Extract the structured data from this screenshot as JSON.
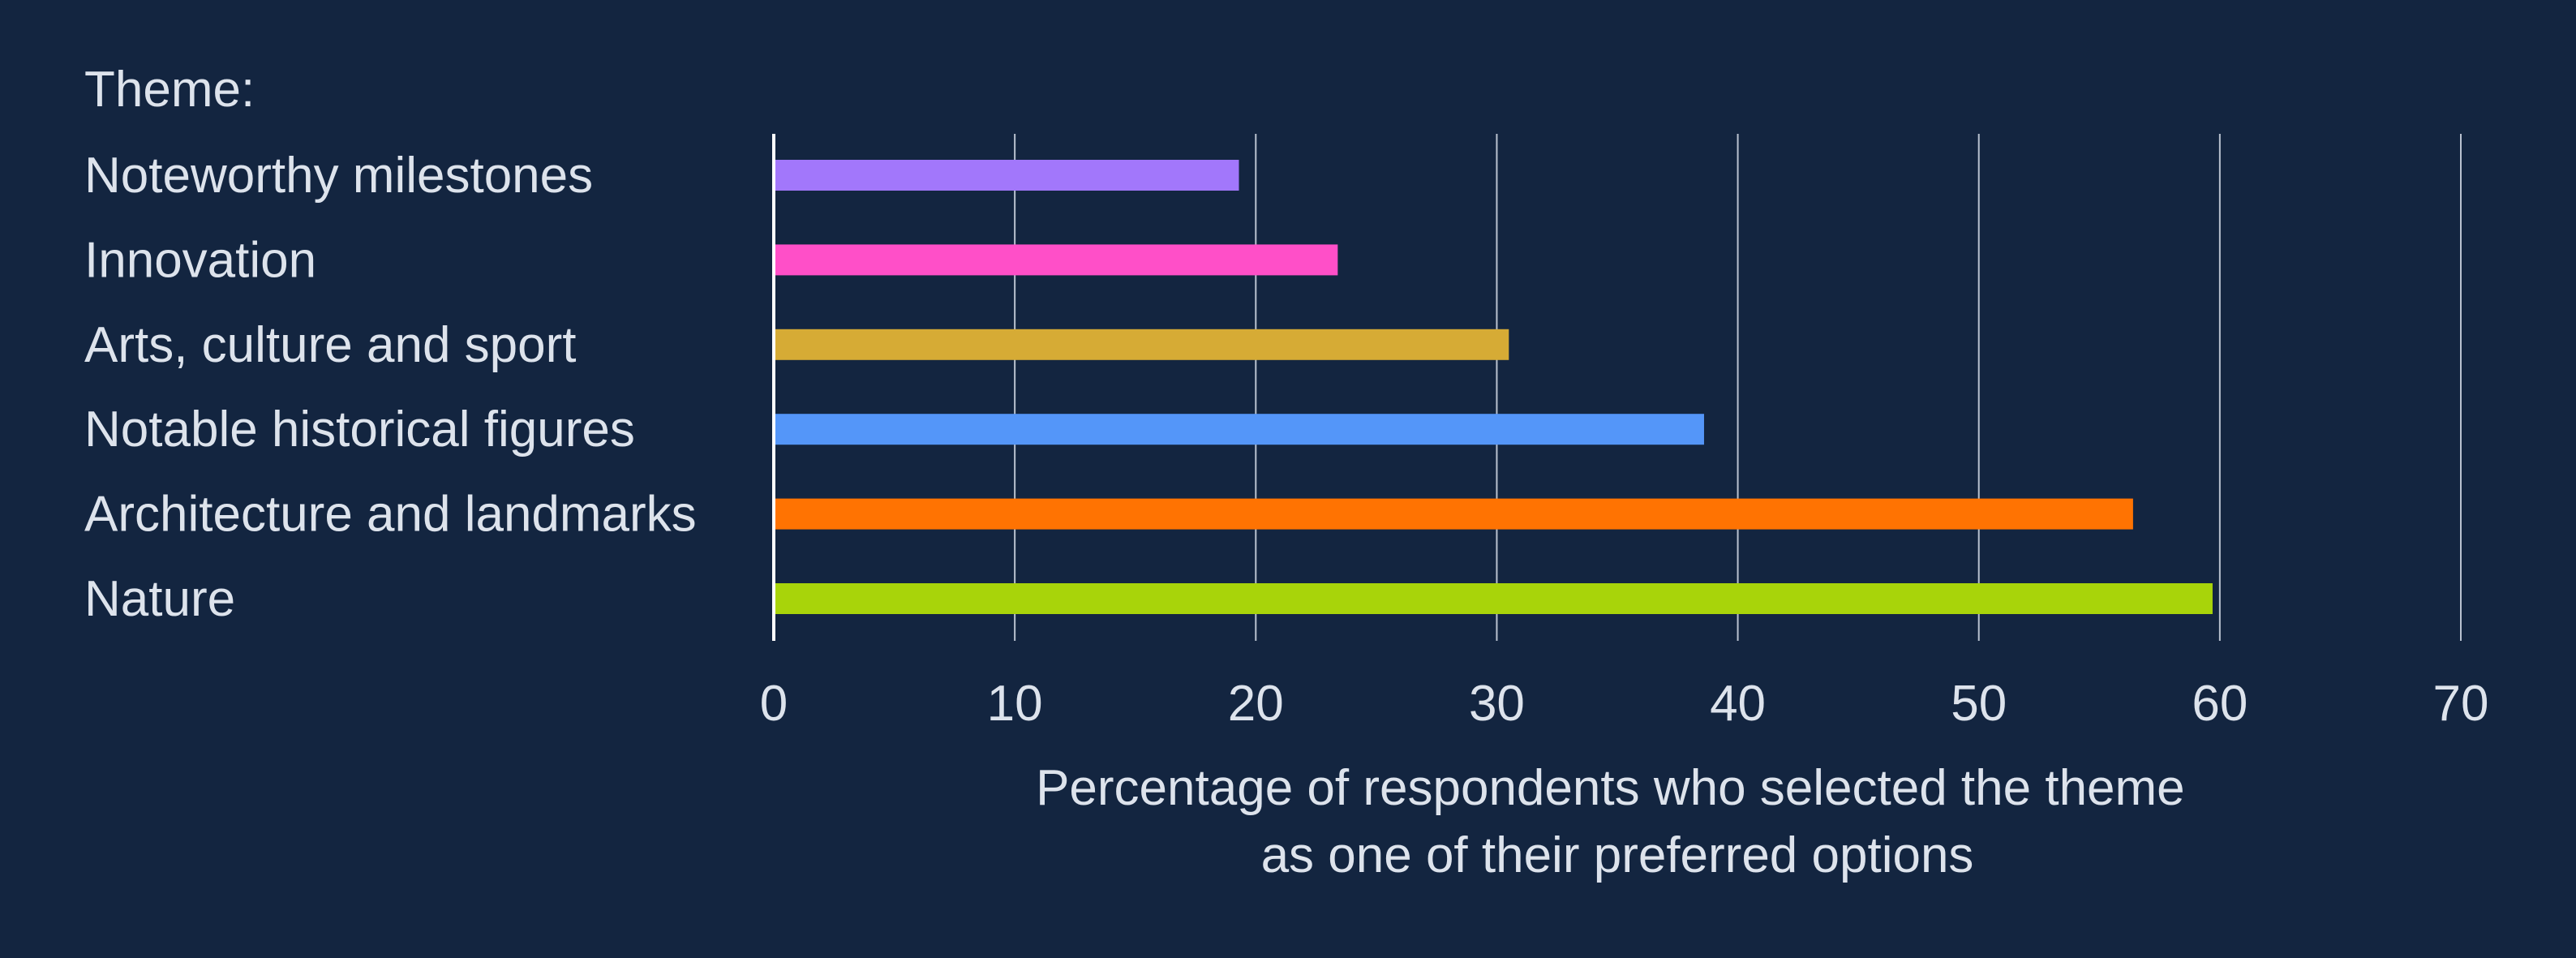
{
  "chart_data": {
    "type": "bar",
    "orientation": "horizontal",
    "category_header": "Theme:",
    "categories": [
      "Noteworthy milestones",
      "Innovation",
      "Arts, culture and sport",
      "Notable historical figures",
      "Architecture and landmarks",
      "Nature"
    ],
    "values": [
      19.3,
      23.4,
      30.5,
      38.6,
      56.4,
      59.7
    ],
    "bar_colors": [
      "#a277fb",
      "#ff4fc8",
      "#d6ab35",
      "#5496f9",
      "#ff7302",
      "#a8d40a"
    ],
    "xlabel_lines": [
      "Percentage of respondents who selected the theme",
      "as one of their preferred options"
    ],
    "xlim": [
      0,
      70
    ],
    "xticks": [
      0,
      10,
      20,
      30,
      40,
      50,
      60,
      70
    ],
    "grid": true,
    "legend": false,
    "colors": {
      "background": "#132540",
      "text": "#dde3ec",
      "grid": "#b9c2d0",
      "axis": "#ffffff"
    }
  }
}
